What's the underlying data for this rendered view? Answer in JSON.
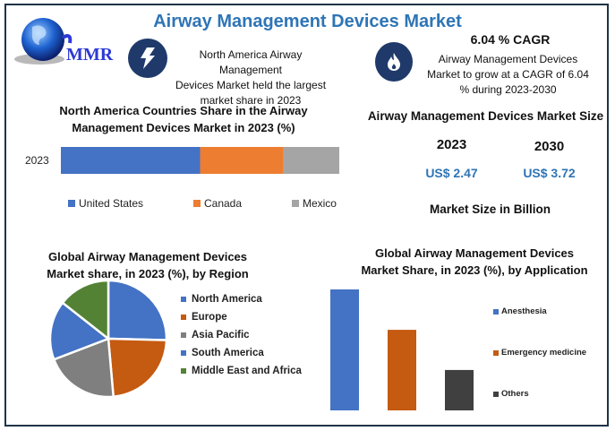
{
  "header": {
    "title": "Airway Management Devices Market",
    "logo_text": "MMR"
  },
  "info_left": {
    "icon": "lightning-icon",
    "text_lines": [
      "North America Airway Management",
      "Devices Market held the largest",
      "market share in 2023"
    ]
  },
  "info_right": {
    "icon": "flame-icon",
    "cagr": "6.04 % CAGR",
    "text_lines": [
      "Airway Management Devices",
      "Market to grow at a CAGR of 6.04",
      "% during 2023-2030"
    ]
  },
  "market_size": {
    "title": "Airway Management Devices Market Size",
    "years": [
      {
        "year": "2023",
        "value": "US$ 2.47"
      },
      {
        "year": "2030",
        "value": "US$ 3.72"
      }
    ],
    "unit_label": "Market Size in Billion"
  },
  "colors": {
    "blue": "#4472c4",
    "orange": "#ed7d31",
    "gray": "#a5a5a5",
    "dark_orange": "#c55a11",
    "pie_gray": "#7f7f7f",
    "green": "#548235",
    "dark": "#404040",
    "title_blue": "#2e75b6",
    "border": "#1f3347"
  },
  "chart_data": [
    {
      "type": "bar",
      "orientation": "horizontal-stacked",
      "title": "North America Countries Share in the Airway Management Devices Market in 2023 (%)",
      "title_lines": [
        "North America Countries Share in the Airway",
        "Management Devices Market in 2023 (%)"
      ],
      "categories": [
        "2023"
      ],
      "series": [
        {
          "name": "United States",
          "values": [
            50
          ],
          "color": "#4472c4"
        },
        {
          "name": "Canada",
          "values": [
            30
          ],
          "color": "#ed7d31"
        },
        {
          "name": "Mexico",
          "values": [
            20
          ],
          "color": "#a5a5a5"
        }
      ],
      "xlim": [
        0,
        100
      ],
      "legend": "bottom",
      "grid": false
    },
    {
      "type": "pie",
      "title": "Global Airway Management Devices Market share, in 2023 (%), by Region",
      "title_lines": [
        "Global Airway Management Devices",
        "Market share, in 2023 (%), by Region"
      ],
      "labels": [
        "North America",
        "Europe",
        "Asia Pacific",
        "South America",
        "Middle East and Africa"
      ],
      "values": [
        25.4,
        23.2,
        20.6,
        16.4,
        14.4
      ],
      "colors": [
        "#4472c4",
        "#c55a11",
        "#7f7f7f",
        "#4472c4",
        "#548235"
      ],
      "legend": "right"
    },
    {
      "type": "bar",
      "title": "Global Airway Management Devices Market Share, in 2023 (%), by Application",
      "title_lines": [
        "Global Airway Management Devices",
        "Market Share, in 2023 (%), by Application"
      ],
      "categories": [
        "Anesthesia",
        "Emergency medicine",
        "Others"
      ],
      "values": [
        50,
        33.3,
        16.7
      ],
      "colors": [
        "#4472c4",
        "#c55a11",
        "#404040"
      ],
      "ylim": [
        0,
        50
      ],
      "legend": "right",
      "grid": false
    }
  ]
}
